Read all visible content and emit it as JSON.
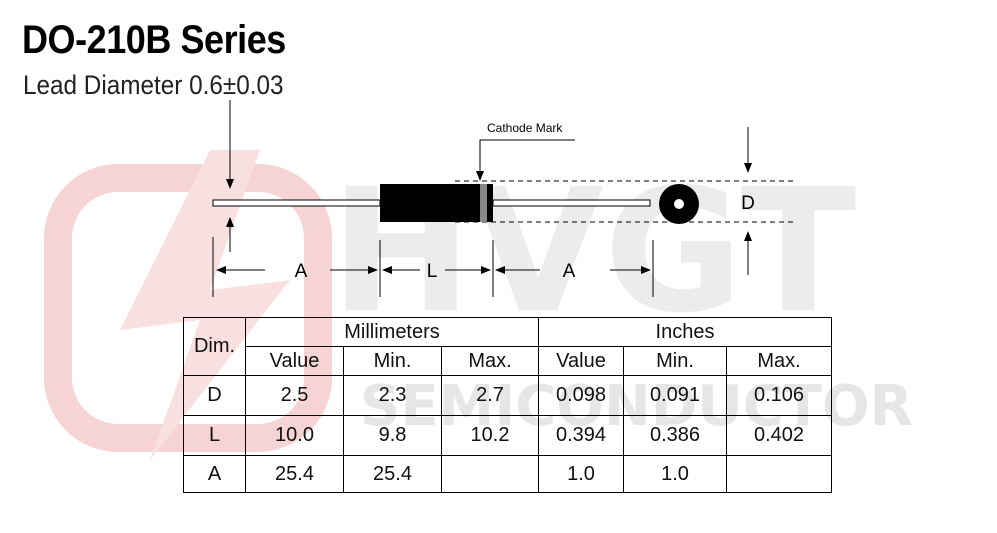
{
  "header": {
    "title": "DO-210B Series",
    "subtitle": "Lead Diameter 0.6±0.03"
  },
  "watermark": {
    "brand": "HVGT",
    "tagline": "SEMICONDUCTOR"
  },
  "diagram": {
    "cathode_label": "Cathode Mark",
    "lead_length_label": "A",
    "body_length_label": "L",
    "lead_length_label_right": "A",
    "diameter_label": "D"
  },
  "table": {
    "dim_header": "Dim.",
    "groups": [
      "Millimeters",
      "Inches"
    ],
    "columns": [
      "Value",
      "Min.",
      "Max.",
      "Value",
      "Min.",
      "Max."
    ],
    "rows": [
      [
        "D",
        "2.5",
        "2.3",
        "2.7",
        "0.098",
        "0.091",
        "0.106"
      ],
      [
        "L",
        "10.0",
        "9.8",
        "10.2",
        "0.394",
        "0.386",
        "0.402"
      ],
      [
        "A",
        "25.4",
        "25.4",
        null,
        "1.0",
        "1.0",
        null
      ]
    ]
  }
}
